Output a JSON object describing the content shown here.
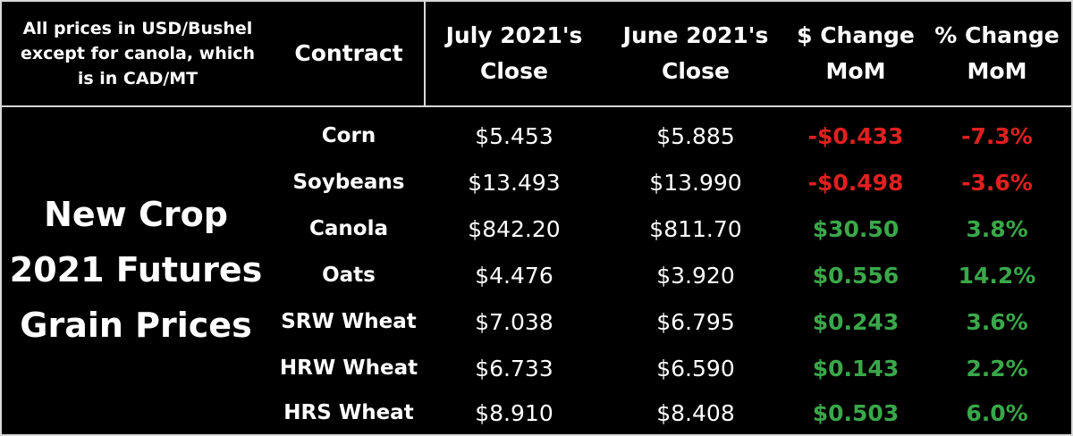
{
  "note": {
    "line1": "All prices in USD/Bushel",
    "line2": "except for canola, which",
    "line3": "is in CAD/MT"
  },
  "headers": {
    "contract": "Contract",
    "july_line1": "July 2021's",
    "july_line2": "Close",
    "june_line1": "June 2021's",
    "june_line2": "Close",
    "dchg_line1": "$ Change",
    "dchg_line2": "MoM",
    "pchg_line1": "% Change",
    "pchg_line2": "MoM"
  },
  "title": {
    "line1": "New Crop",
    "line2": "2021 Futures",
    "line3": "Grain Prices"
  },
  "colors": {
    "negative": "#e02020",
    "positive": "#3aa84a"
  },
  "rows": [
    {
      "contract": "Corn",
      "july": "$5.453",
      "june": "$5.885",
      "dchg": "-$0.433",
      "pchg": "-7.3%",
      "sign": "neg"
    },
    {
      "contract": "Soybeans",
      "july": "$13.493",
      "june": "$13.990",
      "dchg": "-$0.498",
      "pchg": "-3.6%",
      "sign": "neg"
    },
    {
      "contract": "Canola",
      "july": "$842.20",
      "june": "$811.70",
      "dchg": "$30.50",
      "pchg": "3.8%",
      "sign": "pos"
    },
    {
      "contract": "Oats",
      "july": "$4.476",
      "june": "$3.920",
      "dchg": "$0.556",
      "pchg": "14.2%",
      "sign": "pos"
    },
    {
      "contract": "SRW Wheat",
      "july": "$7.038",
      "june": "$6.795",
      "dchg": "$0.243",
      "pchg": "3.6%",
      "sign": "pos"
    },
    {
      "contract": "HRW Wheat",
      "july": "$6.733",
      "june": "$6.590",
      "dchg": "$0.143",
      "pchg": "2.2%",
      "sign": "pos"
    },
    {
      "contract": "HRS Wheat",
      "july": "$8.910",
      "june": "$8.408",
      "dchg": "$0.503",
      "pchg": "6.0%",
      "sign": "pos"
    }
  ]
}
